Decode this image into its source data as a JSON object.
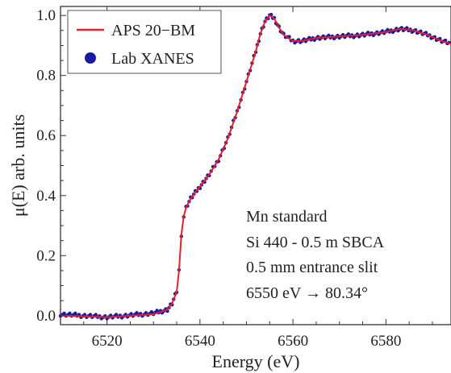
{
  "chart_data": {
    "type": "line",
    "title": "",
    "xlabel": "Energy (eV)",
    "ylabel": "μ(E) arb. units",
    "xlim": [
      6510,
      6594
    ],
    "ylim": [
      -0.03,
      1.03
    ],
    "xticks": [
      6520,
      6540,
      6560,
      6580
    ],
    "yticks": [
      0.0,
      0.2,
      0.4,
      0.6,
      0.8,
      1.0
    ],
    "xtick_labels": [
      "6520",
      "6540",
      "6560",
      "6580"
    ],
    "ytick_labels": [
      "0.0",
      "0.2",
      "0.4",
      "0.6",
      "0.8",
      "1.0"
    ],
    "grid": false,
    "legend_position": "top-left",
    "series": [
      {
        "name": "APS 20−BM",
        "style": "line",
        "color": "#e8202a",
        "x": [
          6510,
          6520,
          6530,
          6533,
          6534,
          6535,
          6535.5,
          6536,
          6536.5,
          6537,
          6538,
          6539,
          6540,
          6541,
          6542,
          6544,
          6546,
          6548,
          6550,
          6552,
          6553,
          6554,
          6555,
          6556,
          6557,
          6558,
          6560,
          6562,
          6565,
          6570,
          6575,
          6580,
          6583,
          6586,
          6589,
          6592,
          6594
        ],
        "y": [
          0.0,
          -0.005,
          0.005,
          0.02,
          0.04,
          0.08,
          0.15,
          0.27,
          0.33,
          0.36,
          0.39,
          0.41,
          0.43,
          0.45,
          0.47,
          0.52,
          0.59,
          0.68,
          0.78,
          0.88,
          0.94,
          0.98,
          1.0,
          0.99,
          0.96,
          0.935,
          0.915,
          0.915,
          0.925,
          0.93,
          0.935,
          0.945,
          0.955,
          0.95,
          0.935,
          0.915,
          0.905
        ]
      },
      {
        "name": "Lab XANES",
        "style": "scatter",
        "color": "#1a1aa0",
        "x": [
          6510,
          6520,
          6530,
          6533,
          6534,
          6535,
          6535.5,
          6536,
          6536.5,
          6537,
          6538,
          6539,
          6540,
          6541,
          6542,
          6544,
          6546,
          6548,
          6550,
          6552,
          6553,
          6554,
          6555,
          6556,
          6557,
          6558,
          6560,
          6562,
          6565,
          6570,
          6575,
          6580,
          6583,
          6586,
          6589,
          6592,
          6594
        ],
        "y": [
          0.005,
          -0.005,
          0.008,
          0.02,
          0.04,
          0.08,
          0.15,
          0.27,
          0.33,
          0.36,
          0.39,
          0.41,
          0.43,
          0.45,
          0.47,
          0.52,
          0.59,
          0.68,
          0.78,
          0.88,
          0.94,
          0.98,
          1.0,
          0.99,
          0.96,
          0.935,
          0.915,
          0.915,
          0.925,
          0.93,
          0.935,
          0.945,
          0.955,
          0.95,
          0.935,
          0.915,
          0.905
        ]
      }
    ],
    "annotations": [
      "Mn standard",
      "Si 440 - 0.5 m SBCA",
      "0.5 mm entrance slit",
      "6550 eV → 80.34°"
    ]
  }
}
